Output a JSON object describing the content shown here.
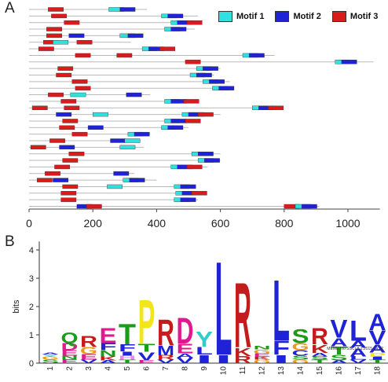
{
  "panel_a": {
    "letter": "A",
    "legend": [
      {
        "label": "Motif 1",
        "color": "#33e0e0"
      },
      {
        "label": "Motif 2",
        "color": "#1f22d6"
      },
      {
        "label": "Motif 3",
        "color": "#d81c1c"
      }
    ],
    "x_ticks": [
      0,
      200,
      400,
      600,
      800,
      1000
    ],
    "x_max": 1100,
    "sequences": [
      {
        "len": 370,
        "motifs": [
          {
            "m": 3,
            "s": 60
          },
          {
            "m": 1,
            "s": 250
          },
          {
            "m": 2,
            "s": 285
          }
        ]
      },
      {
        "len": 530,
        "motifs": [
          {
            "m": 3,
            "s": 70
          },
          {
            "m": 1,
            "s": 415
          },
          {
            "m": 2,
            "s": 435
          }
        ]
      },
      {
        "len": 520,
        "motifs": [
          {
            "m": 3,
            "s": 110
          },
          {
            "m": 1,
            "s": 445
          },
          {
            "m": 2,
            "s": 465
          },
          {
            "m": 3,
            "s": 495
          }
        ]
      },
      {
        "len": 520,
        "motifs": [
          {
            "m": 3,
            "s": 55
          },
          {
            "m": 1,
            "s": 425
          },
          {
            "m": 2,
            "s": 445
          }
        ]
      },
      {
        "len": 340,
        "motifs": [
          {
            "m": 3,
            "s": 55
          },
          {
            "m": 2,
            "s": 125
          },
          {
            "m": 1,
            "s": 285
          },
          {
            "m": 2,
            "s": 310
          }
        ]
      },
      {
        "len": 320,
        "motifs": [
          {
            "m": 3,
            "s": 45
          },
          {
            "m": 1,
            "s": 75
          },
          {
            "m": 3,
            "s": 150
          }
        ]
      },
      {
        "len": 440,
        "motifs": [
          {
            "m": 3,
            "s": 30
          },
          {
            "m": 1,
            "s": 355
          },
          {
            "m": 2,
            "s": 375
          },
          {
            "m": 3,
            "s": 410
          }
        ]
      },
      {
        "len": 770,
        "motifs": [
          {
            "m": 3,
            "s": 145
          },
          {
            "m": 3,
            "s": 275
          },
          {
            "m": 1,
            "s": 670
          },
          {
            "m": 2,
            "s": 690
          }
        ]
      },
      {
        "len": 1080,
        "motifs": [
          {
            "m": 3,
            "s": 490
          },
          {
            "m": 1,
            "s": 960
          },
          {
            "m": 2,
            "s": 980
          }
        ]
      },
      {
        "len": 600,
        "motifs": [
          {
            "m": 3,
            "s": 90
          },
          {
            "m": 1,
            "s": 525
          },
          {
            "m": 2,
            "s": 545
          }
        ]
      },
      {
        "len": 580,
        "motifs": [
          {
            "m": 3,
            "s": 85
          },
          {
            "m": 1,
            "s": 505
          },
          {
            "m": 2,
            "s": 525
          }
        ]
      },
      {
        "len": 630,
        "motifs": [
          {
            "m": 3,
            "s": 135
          },
          {
            "m": 1,
            "s": 545
          },
          {
            "m": 2,
            "s": 565
          }
        ]
      },
      {
        "len": 640,
        "motifs": [
          {
            "m": 3,
            "s": 145
          },
          {
            "m": 1,
            "s": 575
          },
          {
            "m": 2,
            "s": 595
          }
        ]
      },
      {
        "len": 380,
        "motifs": [
          {
            "m": 3,
            "s": 60
          },
          {
            "m": 1,
            "s": 130
          },
          {
            "m": 2,
            "s": 305
          }
        ]
      },
      {
        "len": 510,
        "motifs": [
          {
            "m": 3,
            "s": 100
          },
          {
            "m": 1,
            "s": 425
          },
          {
            "m": 2,
            "s": 445
          },
          {
            "m": 3,
            "s": 485
          }
        ]
      },
      {
        "len": 790,
        "motifs": [
          {
            "m": 3,
            "s": 10
          },
          {
            "m": 3,
            "s": 110
          },
          {
            "m": 1,
            "s": 700
          },
          {
            "m": 2,
            "s": 720
          },
          {
            "m": 3,
            "s": 750
          }
        ]
      },
      {
        "len": 600,
        "motifs": [
          {
            "m": 2,
            "s": 85
          },
          {
            "m": 1,
            "s": 200
          },
          {
            "m": 1,
            "s": 480
          },
          {
            "m": 2,
            "s": 500
          },
          {
            "m": 3,
            "s": 530
          }
        ]
      },
      {
        "len": 520,
        "motifs": [
          {
            "m": 3,
            "s": 105
          },
          {
            "m": 1,
            "s": 425
          },
          {
            "m": 2,
            "s": 445
          },
          {
            "m": 3,
            "s": 490
          }
        ]
      },
      {
        "len": 500,
        "motifs": [
          {
            "m": 3,
            "s": 95
          },
          {
            "m": 2,
            "s": 185
          },
          {
            "m": 1,
            "s": 415
          },
          {
            "m": 2,
            "s": 435
          }
        ]
      },
      {
        "len": 380,
        "motifs": [
          {
            "m": 3,
            "s": 135
          },
          {
            "m": 1,
            "s": 310
          },
          {
            "m": 2,
            "s": 330
          }
        ]
      },
      {
        "len": 350,
        "motifs": [
          {
            "m": 3,
            "s": 65
          },
          {
            "m": 2,
            "s": 255
          },
          {
            "m": 1,
            "s": 300
          }
        ]
      },
      {
        "len": 360,
        "motifs": [
          {
            "m": 3,
            "s": 5
          },
          {
            "m": 2,
            "s": 95
          },
          {
            "m": 1,
            "s": 285
          }
        ]
      },
      {
        "len": 600,
        "motifs": [
          {
            "m": 3,
            "s": 125
          },
          {
            "m": 1,
            "s": 510
          },
          {
            "m": 2,
            "s": 530
          }
        ]
      },
      {
        "len": 600,
        "motifs": [
          {
            "m": 3,
            "s": 105
          },
          {
            "m": 1,
            "s": 530
          },
          {
            "m": 2,
            "s": 550
          }
        ]
      },
      {
        "len": 560,
        "motifs": [
          {
            "m": 3,
            "s": 80
          },
          {
            "m": 1,
            "s": 445
          },
          {
            "m": 2,
            "s": 465
          },
          {
            "m": 3,
            "s": 495
          }
        ]
      },
      {
        "len": 330,
        "motifs": [
          {
            "m": 3,
            "s": 50
          },
          {
            "m": 2,
            "s": 265
          }
        ]
      },
      {
        "len": 400,
        "motifs": [
          {
            "m": 3,
            "s": 25
          },
          {
            "m": 2,
            "s": 75
          },
          {
            "m": 1,
            "s": 295
          },
          {
            "m": 2,
            "s": 315
          }
        ]
      },
      {
        "len": 490,
        "motifs": [
          {
            "m": 3,
            "s": 105
          },
          {
            "m": 1,
            "s": 245
          },
          {
            "m": 1,
            "s": 455
          },
          {
            "m": 2,
            "s": 475
          }
        ]
      },
      {
        "len": 540,
        "motifs": [
          {
            "m": 3,
            "s": 100
          },
          {
            "m": 1,
            "s": 460
          },
          {
            "m": 2,
            "s": 480
          },
          {
            "m": 3,
            "s": 510
          }
        ]
      },
      {
        "len": 530,
        "motifs": [
          {
            "m": 3,
            "s": 100
          },
          {
            "m": 1,
            "s": 455
          },
          {
            "m": 2,
            "s": 475
          }
        ]
      },
      {
        "len": 910,
        "motifs": [
          {
            "m": 2,
            "s": 150
          },
          {
            "m": 3,
            "s": 180
          },
          {
            "m": 3,
            "s": 800
          },
          {
            "m": 1,
            "s": 835
          },
          {
            "m": 2,
            "s": 855
          }
        ]
      }
    ]
  },
  "panel_b": {
    "letter": "B",
    "ylabel": "bits",
    "y_ticks": [
      0,
      1,
      2,
      3,
      4
    ],
    "credit": "MEME (no SSC) 8.1.2015 14:32",
    "letter_colors": {
      "A": "#1f22d6",
      "C": "#1f22d6",
      "F": "#1f22d6",
      "I": "#1f22d6",
      "L": "#1f22d6",
      "M": "#1f22d6",
      "V": "#1f22d6",
      "W": "#1f22d6",
      "N": "#1a9c1a",
      "Q": "#1a9c1a",
      "S": "#1a9c1a",
      "T": "#1a9c1a",
      "D": "#e0198f",
      "E": "#e0198f",
      "K": "#c41c1c",
      "R": "#c41c1c",
      "G": "#e89a1a",
      "P": "#f2e61a",
      "H": "#ee82ee",
      "Y": "#33cccc"
    },
    "positions": [
      {
        "pos": 1,
        "stack": [
          [
            "S",
            0.12
          ],
          [
            "G",
            0.1
          ],
          [
            "Y",
            0.08
          ],
          [
            "A",
            0.08
          ]
        ]
      },
      {
        "pos": 2,
        "stack": [
          [
            "E",
            0.14
          ],
          [
            "N",
            0.12
          ],
          [
            "E",
            0.2
          ],
          [
            "D",
            0.25
          ],
          [
            "Q",
            0.38
          ]
        ]
      },
      {
        "pos": 3,
        "stack": [
          [
            "V",
            0.12
          ],
          [
            "E",
            0.2
          ],
          [
            "G",
            0.25
          ],
          [
            "R",
            0.4
          ]
        ]
      },
      {
        "pos": 4,
        "stack": [
          [
            "A",
            0.1
          ],
          [
            "K",
            0.14
          ],
          [
            "N",
            0.22
          ],
          [
            "F",
            0.25
          ],
          [
            "E",
            0.55
          ]
        ]
      },
      {
        "pos": 5,
        "stack": [
          [
            "T",
            0.12
          ],
          [
            "H",
            0.15
          ],
          [
            "I",
            0.15
          ],
          [
            "F",
            0.25
          ],
          [
            "T",
            0.75
          ]
        ]
      },
      {
        "pos": 6,
        "stack": [
          [
            "E",
            0.1
          ],
          [
            "V",
            0.3
          ],
          [
            "T",
            0.3
          ],
          [
            "P",
            1.6
          ]
        ]
      },
      {
        "pos": 7,
        "stack": [
          [
            "V",
            0.12
          ],
          [
            "R",
            0.16
          ],
          [
            "M",
            0.35
          ],
          [
            "R",
            0.95
          ]
        ]
      },
      {
        "pos": 8,
        "stack": [
          [
            "V",
            0.2
          ],
          [
            "A",
            0.15
          ],
          [
            "E",
            0.35
          ],
          [
            "D",
            0.95
          ]
        ]
      },
      {
        "pos": 9,
        "stack": [
          [
            "I",
            0.3
          ],
          [
            "L",
            0.28
          ],
          [
            "Y",
            0.55
          ]
        ]
      },
      {
        "pos": 10,
        "stack": [
          [
            "I",
            0.3
          ],
          [
            "L",
            3.4
          ]
        ]
      },
      {
        "pos": 11,
        "stack": [
          [
            "R",
            0.25
          ],
          [
            "K",
            0.3
          ],
          [
            "R",
            2.35
          ]
        ]
      },
      {
        "pos": 12,
        "stack": [
          [
            "G",
            0.12
          ],
          [
            "K",
            0.1
          ],
          [
            "E",
            0.12
          ],
          [
            "G",
            0.14
          ],
          [
            "N",
            0.12
          ]
        ]
      },
      {
        "pos": 13,
        "stack": [
          [
            "I",
            0.3
          ],
          [
            "F",
            0.5
          ],
          [
            "L",
            2.2
          ]
        ]
      },
      {
        "pos": 14,
        "stack": [
          [
            "G",
            0.12
          ],
          [
            "S",
            0.14
          ],
          [
            "C",
            0.2
          ],
          [
            "G",
            0.25
          ],
          [
            "S",
            0.5
          ]
        ]
      },
      {
        "pos": 15,
        "stack": [
          [
            "T",
            0.12
          ],
          [
            "S",
            0.12
          ],
          [
            "A",
            0.12
          ],
          [
            "K",
            0.3
          ],
          [
            "R",
            0.6
          ]
        ]
      },
      {
        "pos": 16,
        "stack": [
          [
            "A",
            0.1
          ],
          [
            "S",
            0.2
          ],
          [
            "T",
            0.3
          ],
          [
            "A",
            0.3
          ],
          [
            "V",
            0.65
          ]
        ]
      },
      {
        "pos": 17,
        "stack": [
          [
            "V",
            0.12
          ],
          [
            "L",
            0.12
          ],
          [
            "A",
            0.3
          ],
          [
            "A",
            0.25
          ],
          [
            "L",
            0.75
          ]
        ]
      },
      {
        "pos": 18,
        "stack": [
          [
            "T",
            0.12
          ],
          [
            "I",
            0.1
          ],
          [
            "P",
            0.15
          ],
          [
            "A",
            0.3
          ],
          [
            "V",
            0.5
          ],
          [
            "A",
            0.6
          ]
        ]
      }
    ]
  }
}
